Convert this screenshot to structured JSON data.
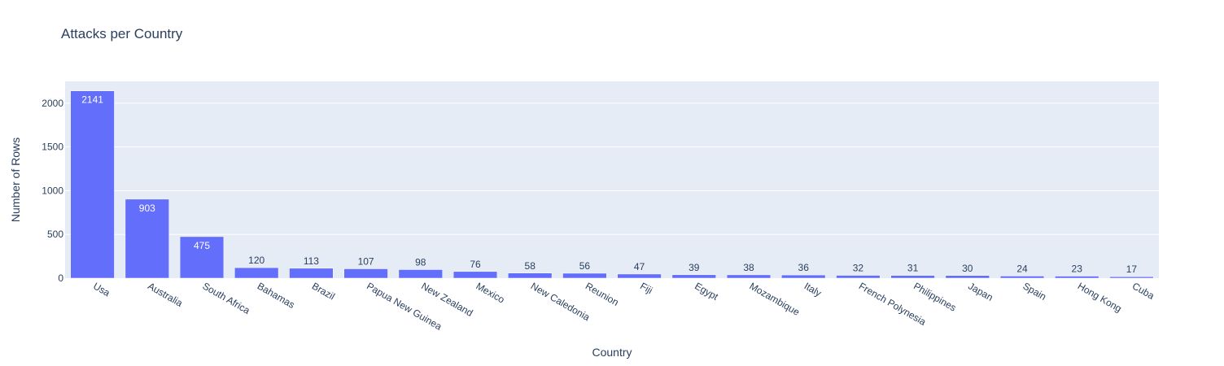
{
  "chart_data": {
    "type": "bar",
    "title": "Attacks per Country",
    "xlabel": "Country",
    "ylabel": "Number of Rows",
    "categories": [
      "Usa",
      "Australia",
      "South Africa",
      "Bahamas",
      "Brazil",
      "Papua New Guinea",
      "New Zealand",
      "Mexico",
      "New Caledonia",
      "Reunion",
      "Fiji",
      "Egypt",
      "Mozambique",
      "Italy",
      "French Polynesia",
      "Philippines",
      "Japan",
      "Spain",
      "Hong Kong",
      "Cuba"
    ],
    "values": [
      2141,
      903,
      475,
      120,
      113,
      107,
      98,
      76,
      58,
      56,
      47,
      39,
      38,
      36,
      32,
      31,
      30,
      24,
      23,
      17
    ],
    "y_ticks": [
      0,
      500,
      1000,
      1500,
      2000
    ],
    "ylim": [
      0,
      2250
    ],
    "grid": true,
    "bar_color": "#636efa",
    "plot_bg_color": "#e5ecf6",
    "text_color": "#2a3f5f"
  }
}
